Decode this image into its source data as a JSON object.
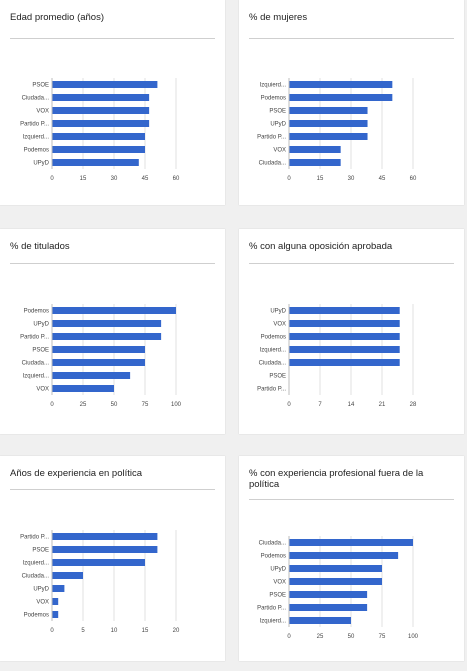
{
  "colors": {
    "bar": "#3366cc",
    "grid": "#e2e2e2",
    "axis": "#bdbdbd",
    "label": "#444444"
  },
  "chart_data": [
    {
      "type": "bar",
      "orientation": "horizontal",
      "title": "Edad promedio (años)",
      "categories": [
        "PSOE",
        "Ciudada...",
        "VOX",
        "Partido P...",
        "Izquierd...",
        "Podemos",
        "UPyD"
      ],
      "values": [
        51,
        47,
        47,
        47,
        45,
        45,
        42
      ],
      "xticks": [
        0,
        15,
        30,
        45,
        60
      ],
      "xlim": [
        0,
        60
      ],
      "grid": true
    },
    {
      "type": "bar",
      "orientation": "horizontal",
      "title": "% de mujeres",
      "categories": [
        "Izquierd...",
        "Podemos",
        "PSOE",
        "UPyD",
        "Partido P...",
        "VOX",
        "Ciudada..."
      ],
      "values": [
        50,
        50,
        38,
        38,
        38,
        25,
        25
      ],
      "xticks": [
        0,
        15,
        30,
        45,
        60
      ],
      "xlim": [
        0,
        60
      ],
      "grid": true
    },
    {
      "type": "bar",
      "orientation": "horizontal",
      "title": "% de titulados",
      "categories": [
        "Podemos",
        "UPyD",
        "Partido P...",
        "PSOE",
        "Ciudada...",
        "Izquierd...",
        "VOX"
      ],
      "values": [
        100,
        88,
        88,
        75,
        75,
        63,
        50
      ],
      "xticks": [
        0,
        25,
        50,
        75,
        100
      ],
      "xlim": [
        0,
        100
      ],
      "grid": true
    },
    {
      "type": "bar",
      "orientation": "horizontal",
      "title": "% con alguna oposición aprobada",
      "categories": [
        "UPyD",
        "VOX",
        "Podemos",
        "Izquierd...",
        "Ciudada...",
        "PSOE",
        "Partido P..."
      ],
      "values": [
        25,
        25,
        25,
        25,
        25,
        0,
        0
      ],
      "xticks": [
        0,
        7,
        14,
        21,
        28
      ],
      "xlim": [
        0,
        28
      ],
      "grid": true
    },
    {
      "type": "bar",
      "orientation": "horizontal",
      "title": "Años de experiencia en política",
      "categories": [
        "Partido P...",
        "PSOE",
        "Izquierd...",
        "Ciudada...",
        "UPyD",
        "VOX",
        "Podemos"
      ],
      "values": [
        17,
        17,
        15,
        5,
        2,
        1,
        1
      ],
      "xticks": [
        0,
        5,
        10,
        15,
        20
      ],
      "xlim": [
        0,
        20
      ],
      "grid": true
    },
    {
      "type": "bar",
      "orientation": "horizontal",
      "title": "% con experiencia profesional fuera de la política",
      "categories": [
        "Ciudada...",
        "Podemos",
        "UPyD",
        "VOX",
        "PSOE",
        "Partido P...",
        "Izquierd..."
      ],
      "values": [
        100,
        88,
        75,
        75,
        63,
        63,
        50
      ],
      "xticks": [
        0,
        25,
        50,
        75,
        100
      ],
      "xlim": [
        0,
        100
      ],
      "grid": true
    }
  ]
}
